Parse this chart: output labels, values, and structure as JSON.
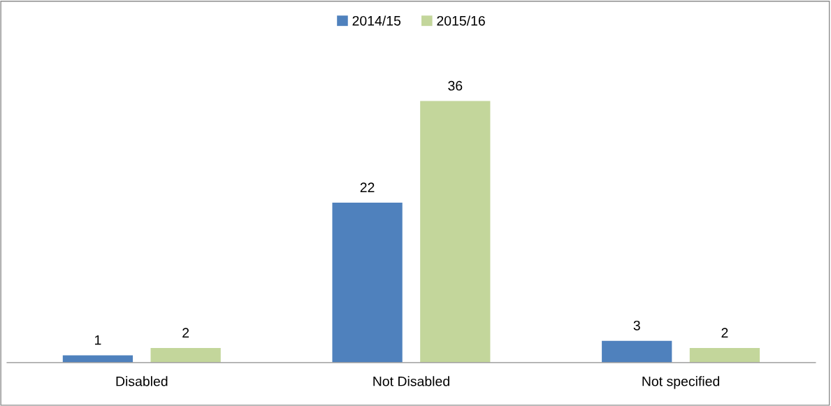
{
  "chart_data": {
    "type": "bar",
    "categories": [
      "Disabled",
      "Not Disabled",
      "Not specified"
    ],
    "series": [
      {
        "name": "2014/15",
        "color": "#4f81bd",
        "values": [
          1,
          22,
          3
        ]
      },
      {
        "name": "2015/16",
        "color": "#c3d69b",
        "values": [
          2,
          36,
          2
        ]
      }
    ],
    "ylim": [
      0,
      48
    ],
    "data_labels": true,
    "legend": "top",
    "grid": false
  }
}
